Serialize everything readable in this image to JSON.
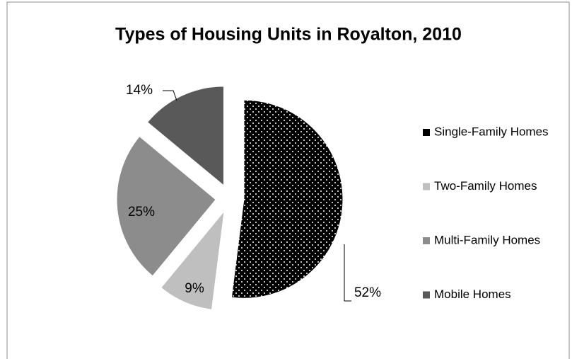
{
  "chart_data": {
    "type": "pie",
    "title": "Types of Housing Units in Royalton, 2010",
    "categories": [
      "Single-Family Homes",
      "Two-Family Homes",
      "Multi-Family Homes",
      "Mobile Homes"
    ],
    "values": [
      52,
      9,
      25,
      14
    ],
    "value_labels": [
      "52%",
      "9%",
      "25%",
      "14%"
    ],
    "colors": [
      "#000000",
      "#bfbfbf",
      "#8c8c8c",
      "#595959"
    ],
    "patterns": [
      "dots",
      "none",
      "none",
      "none"
    ],
    "exploded": true,
    "legend": "right"
  }
}
